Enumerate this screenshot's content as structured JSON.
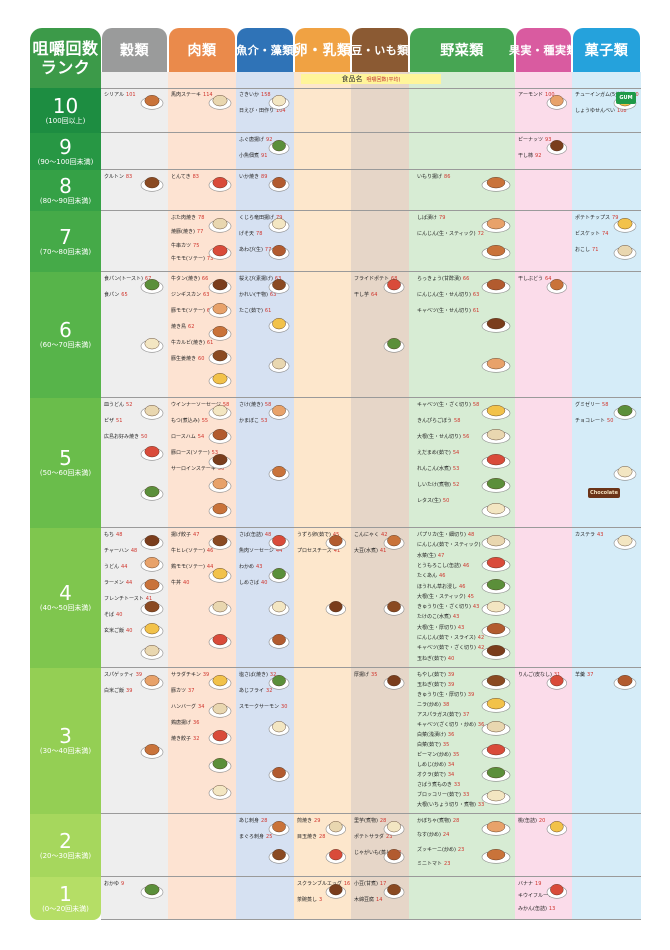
{
  "chart_data": {
    "type": "table",
    "title": "",
    "subheader": {
      "label": "食品名",
      "note": "咀嚼回数(平均)"
    },
    "colors": {
      "corner": "#3c9a49",
      "grain": "#9a9b9b",
      "meat": "#ea8a4b",
      "fish": "#2f73b7",
      "egg": "#f0a243",
      "bean": "#8b5a33",
      "veg": "#47a553",
      "fruit": "#d95ba0",
      "sweet": "#25a2dc",
      "grain_bg": "#eeeeee",
      "meat_bg": "#fde3d2",
      "fish_bg": "#d6e1f2",
      "egg_bg": "#fde7cc",
      "bean_bg": "#e6d6c8",
      "veg_bg": "#d7ecd4",
      "fruit_bg": "#fbdcea",
      "sweet_bg": "#d5ecf8"
    },
    "corner_label": [
      "咀嚼回数",
      "ランク"
    ],
    "categories": [
      {
        "key": "grain",
        "label": "穀類"
      },
      {
        "key": "meat",
        "label": "肉類"
      },
      {
        "key": "fish",
        "label": "魚介・藻類"
      },
      {
        "key": "egg",
        "label": "卵・乳類"
      },
      {
        "key": "bean",
        "label": "豆・いも類"
      },
      {
        "key": "veg",
        "label": "野菜類"
      },
      {
        "key": "fruit",
        "label": "果実・種実類"
      },
      {
        "key": "sweet",
        "label": "菓子類"
      }
    ],
    "ranks": [
      {
        "rank": "10",
        "range": "(100回以上)",
        "color": "#1d8d41"
      },
      {
        "rank": "9",
        "range": "(90〜100回未満)",
        "color": "#279744"
      },
      {
        "rank": "8",
        "range": "(80〜90回未満)",
        "color": "#35a146"
      },
      {
        "rank": "7",
        "range": "(70〜80回未満)",
        "color": "#45aa48"
      },
      {
        "rank": "6",
        "range": "(60〜70回未満)",
        "color": "#57b44a"
      },
      {
        "rank": "5",
        "range": "(50〜60回未満)",
        "color": "#6abd4b"
      },
      {
        "rank": "4",
        "range": "(40〜50回未満)",
        "color": "#7fc64e"
      },
      {
        "rank": "3",
        "range": "(30〜40回未満)",
        "color": "#94cf54"
      },
      {
        "rank": "2",
        "range": "(20〜30回未満)",
        "color": "#a6d75d"
      },
      {
        "rank": "1",
        "range": "(0〜20回未満)",
        "color": "#b5de66"
      }
    ],
    "foods": [
      {
        "cat": "grain",
        "rank": "10",
        "name": "シリアル",
        "count": 101
      },
      {
        "cat": "meat",
        "rank": "10",
        "name": "馬肉ステーキ",
        "count": 114
      },
      {
        "cat": "fish",
        "rank": "10",
        "name": "さきいか",
        "count": 158
      },
      {
        "cat": "fish",
        "rank": "10",
        "name": "日えび・田作り",
        "count": 104
      },
      {
        "cat": "fruit",
        "rank": "10",
        "name": "アーモンド",
        "count": 100
      },
      {
        "cat": "sweet",
        "rank": "10",
        "name": "チューインガム(5分間)",
        "count": 430
      },
      {
        "cat": "sweet",
        "rank": "10",
        "name": "しょうゆせんべい",
        "count": 108
      },
      {
        "cat": "fish",
        "rank": "9",
        "name": "ふぐ唐揚げ",
        "count": 92
      },
      {
        "cat": "fish",
        "rank": "9",
        "name": "小魚佃煮",
        "count": 91
      },
      {
        "cat": "fruit",
        "rank": "9",
        "name": "ピーナッツ",
        "count": 93
      },
      {
        "cat": "fruit",
        "rank": "9",
        "name": "干し柿",
        "count": 92
      },
      {
        "cat": "grain",
        "rank": "8",
        "name": "クルトン",
        "count": 83
      },
      {
        "cat": "meat",
        "rank": "8",
        "name": "とんてき",
        "count": 83
      },
      {
        "cat": "fish",
        "rank": "8",
        "name": "いか焼き",
        "count": 89
      },
      {
        "cat": "veg",
        "rank": "8",
        "name": "いもり揚げ",
        "count": 86
      },
      {
        "cat": "meat",
        "rank": "7",
        "name": "ぶた肉焼き",
        "count": 78
      },
      {
        "cat": "meat",
        "rank": "7",
        "name": "焼豚(焼き)",
        "count": 77
      },
      {
        "cat": "meat",
        "rank": "7",
        "name": "牛串カツ",
        "count": 75
      },
      {
        "cat": "meat",
        "rank": "7",
        "name": "牛モモ(ソテー)",
        "count": 73
      },
      {
        "cat": "fish",
        "rank": "7",
        "name": "くじら竜田揚げ",
        "count": 79
      },
      {
        "cat": "fish",
        "rank": "7",
        "name": "げそ天",
        "count": 78
      },
      {
        "cat": "fish",
        "rank": "7",
        "name": "あわび(生)",
        "count": 77
      },
      {
        "cat": "veg",
        "rank": "7",
        "name": "しば漬け",
        "count": 79
      },
      {
        "cat": "veg",
        "rank": "7",
        "name": "にんじん(生・スティック)",
        "count": 72
      },
      {
        "cat": "sweet",
        "rank": "7",
        "name": "ポテトチップス",
        "count": 79
      },
      {
        "cat": "sweet",
        "rank": "7",
        "name": "ビスケット",
        "count": 74
      },
      {
        "cat": "sweet",
        "rank": "7",
        "name": "おこし",
        "count": 71
      },
      {
        "cat": "grain",
        "rank": "6",
        "name": "食パン(トースト)",
        "count": 67
      },
      {
        "cat": "grain",
        "rank": "6",
        "name": "食パン",
        "count": 65
      },
      {
        "cat": "meat",
        "rank": "6",
        "name": "牛タン(焼き)",
        "count": 66
      },
      {
        "cat": "meat",
        "rank": "6",
        "name": "ジンギスカン",
        "count": 63
      },
      {
        "cat": "meat",
        "rank": "6",
        "name": "豚モモ(ソテー)",
        "count": 62
      },
      {
        "cat": "meat",
        "rank": "6",
        "name": "焼き鳥",
        "count": 62
      },
      {
        "cat": "meat",
        "rank": "6",
        "name": "牛カルビ(焼き)",
        "count": 61
      },
      {
        "cat": "meat",
        "rank": "6",
        "name": "豚生姜焼き",
        "count": 60
      },
      {
        "cat": "fish",
        "rank": "6",
        "name": "桜えび(素揚げ)",
        "count": 63
      },
      {
        "cat": "fish",
        "rank": "6",
        "name": "かれい(干物)",
        "count": 63
      },
      {
        "cat": "fish",
        "rank": "6",
        "name": "たこ(茹で)",
        "count": 61
      },
      {
        "cat": "bean",
        "rank": "6",
        "name": "フライドポテト",
        "count": 68
      },
      {
        "cat": "bean",
        "rank": "6",
        "name": "干し芋",
        "count": 64
      },
      {
        "cat": "veg",
        "rank": "6",
        "name": "らっきょう(甘酢漬)",
        "count": 66
      },
      {
        "cat": "veg",
        "rank": "6",
        "name": "にんじん(生・せん切り)",
        "count": 63
      },
      {
        "cat": "veg",
        "rank": "6",
        "name": "キャベツ(生・せん切り)",
        "count": 61
      },
      {
        "cat": "fruit",
        "rank": "6",
        "name": "干しぶどう",
        "count": 64
      },
      {
        "cat": "grain",
        "rank": "5",
        "name": "皿うどん",
        "count": 52
      },
      {
        "cat": "grain",
        "rank": "5",
        "name": "ピザ",
        "count": 51
      },
      {
        "cat": "grain",
        "rank": "5",
        "name": "広島お好み焼き",
        "count": 50
      },
      {
        "cat": "meat",
        "rank": "5",
        "name": "ウインナーソーセージ",
        "count": 58
      },
      {
        "cat": "meat",
        "rank": "5",
        "name": "もつ(煮込み)",
        "count": 55
      },
      {
        "cat": "meat",
        "rank": "5",
        "name": "ロースハム",
        "count": 54
      },
      {
        "cat": "meat",
        "rank": "5",
        "name": "豚ロース(ソテー)",
        "count": 53
      },
      {
        "cat": "meat",
        "rank": "5",
        "name": "サーロインステーキ",
        "count": 50
      },
      {
        "cat": "fish",
        "rank": "5",
        "name": "さけ(焼き)",
        "count": 58
      },
      {
        "cat": "fish",
        "rank": "5",
        "name": "かまぼこ",
        "count": 53
      },
      {
        "cat": "veg",
        "rank": "5",
        "name": "キャベツ(生・ざく切り)",
        "count": 58
      },
      {
        "cat": "veg",
        "rank": "5",
        "name": "きんぴらごぼう",
        "count": 58
      },
      {
        "cat": "veg",
        "rank": "5",
        "name": "大根(生・せん切り)",
        "count": 56
      },
      {
        "cat": "veg",
        "rank": "5",
        "name": "えだまめ(茹で)",
        "count": 54
      },
      {
        "cat": "veg",
        "rank": "5",
        "name": "れんこん(水煮)",
        "count": 53
      },
      {
        "cat": "veg",
        "rank": "5",
        "name": "しいたけ(煮物)",
        "count": 52
      },
      {
        "cat": "veg",
        "rank": "5",
        "name": "レタス(生)",
        "count": 50
      },
      {
        "cat": "sweet",
        "rank": "5",
        "name": "グミゼリー",
        "count": 58
      },
      {
        "cat": "sweet",
        "rank": "5",
        "name": "チョコレート",
        "count": 50
      },
      {
        "cat": "grain",
        "rank": "4",
        "name": "もち",
        "count": 48
      },
      {
        "cat": "grain",
        "rank": "4",
        "name": "チャーハン",
        "count": 48
      },
      {
        "cat": "grain",
        "rank": "4",
        "name": "うどん",
        "count": 44
      },
      {
        "cat": "grain",
        "rank": "4",
        "name": "ラーメン",
        "count": 44
      },
      {
        "cat": "grain",
        "rank": "4",
        "name": "フレンチトースト",
        "count": 41
      },
      {
        "cat": "grain",
        "rank": "4",
        "name": "そば",
        "count": 40
      },
      {
        "cat": "grain",
        "rank": "4",
        "name": "玄米ご飯",
        "count": 40
      },
      {
        "cat": "meat",
        "rank": "4",
        "name": "揚げ餃子",
        "count": 47
      },
      {
        "cat": "meat",
        "rank": "4",
        "name": "牛ヒレ(ソテー)",
        "count": 46
      },
      {
        "cat": "meat",
        "rank": "4",
        "name": "鶏モモ(ソテー)",
        "count": 44
      },
      {
        "cat": "meat",
        "rank": "4",
        "name": "牛丼",
        "count": 40
      },
      {
        "cat": "fish",
        "rank": "4",
        "name": "さば(缶詰)",
        "count": 48
      },
      {
        "cat": "fish",
        "rank": "4",
        "name": "魚肉ソーセージ",
        "count": 44
      },
      {
        "cat": "fish",
        "rank": "4",
        "name": "わかめ",
        "count": 43
      },
      {
        "cat": "fish",
        "rank": "4",
        "name": "しめさば",
        "count": 40
      },
      {
        "cat": "egg",
        "rank": "4",
        "name": "うずら卵(茹で)",
        "count": 45
      },
      {
        "cat": "egg",
        "rank": "4",
        "name": "プロセスチーズ",
        "count": 41
      },
      {
        "cat": "bean",
        "rank": "4",
        "name": "こんにゃく",
        "count": 42
      },
      {
        "cat": "bean",
        "rank": "4",
        "name": "大豆(水煮)",
        "count": 41
      },
      {
        "cat": "veg",
        "rank": "4",
        "name": "パプリカ(生・細切り)",
        "count": 48
      },
      {
        "cat": "veg",
        "rank": "4",
        "name": "にんじん(茹で・スティック)",
        "count": 48
      },
      {
        "cat": "veg",
        "rank": "4",
        "name": "水菜(生)",
        "count": 47
      },
      {
        "cat": "veg",
        "rank": "4",
        "name": "とうもろこし(缶詰)",
        "count": 46
      },
      {
        "cat": "veg",
        "rank": "4",
        "name": "たくあん",
        "count": 46
      },
      {
        "cat": "veg",
        "rank": "4",
        "name": "ほうれん草お浸し",
        "count": 46
      },
      {
        "cat": "veg",
        "rank": "4",
        "name": "大根(生・スティック)",
        "count": 45
      },
      {
        "cat": "veg",
        "rank": "4",
        "name": "きゅうり(生・ざく切り)",
        "count": 43
      },
      {
        "cat": "veg",
        "rank": "4",
        "name": "たけのこ(水煮)",
        "count": 43
      },
      {
        "cat": "veg",
        "rank": "4",
        "name": "大根(生・厚切り)",
        "count": 43
      },
      {
        "cat": "veg",
        "rank": "4",
        "name": "にんじん(茹で・スライス)",
        "count": 42
      },
      {
        "cat": "veg",
        "rank": "4",
        "name": "キャベツ(茹で・ざく切り)",
        "count": 42
      },
      {
        "cat": "veg",
        "rank": "4",
        "name": "玉ねぎ(茹で)",
        "count": 40
      },
      {
        "cat": "sweet",
        "rank": "4",
        "name": "カステラ",
        "count": 43
      },
      {
        "cat": "grain",
        "rank": "3",
        "name": "スパゲッティ",
        "count": 39
      },
      {
        "cat": "grain",
        "rank": "3",
        "name": "白米ご飯",
        "count": 39
      },
      {
        "cat": "meat",
        "rank": "3",
        "name": "サラダチキン",
        "count": 39
      },
      {
        "cat": "meat",
        "rank": "3",
        "name": "豚カツ",
        "count": 37
      },
      {
        "cat": "meat",
        "rank": "3",
        "name": "ハンバーグ",
        "count": 34
      },
      {
        "cat": "meat",
        "rank": "3",
        "name": "鶏唐揚げ",
        "count": 36
      },
      {
        "cat": "meat",
        "rank": "3",
        "name": "焼き餃子",
        "count": 32
      },
      {
        "cat": "fish",
        "rank": "3",
        "name": "塩さば(焼き)",
        "count": 32
      },
      {
        "cat": "fish",
        "rank": "3",
        "name": "あじフライ",
        "count": 32
      },
      {
        "cat": "fish",
        "rank": "3",
        "name": "スモークサーモン",
        "count": 30
      },
      {
        "cat": "bean",
        "rank": "3",
        "name": "厚揚げ",
        "count": 35
      },
      {
        "cat": "veg",
        "rank": "3",
        "name": "もやし(茹で)",
        "count": 39
      },
      {
        "cat": "veg",
        "rank": "3",
        "name": "玉ねぎ(茹で)",
        "count": 39
      },
      {
        "cat": "veg",
        "rank": "3",
        "name": "きゅうり(生・厚切り)",
        "count": 39
      },
      {
        "cat": "veg",
        "rank": "3",
        "name": "ニラ(炒め)",
        "count": 38
      },
      {
        "cat": "veg",
        "rank": "3",
        "name": "アスパラガス(茹で)",
        "count": 37
      },
      {
        "cat": "veg",
        "rank": "3",
        "name": "キャベツ(ざく切り・炒め)",
        "count": 36
      },
      {
        "cat": "veg",
        "rank": "3",
        "name": "白菜(浅漬け)",
        "count": 36
      },
      {
        "cat": "veg",
        "rank": "3",
        "name": "白菜(茹で)",
        "count": 35
      },
      {
        "cat": "veg",
        "rank": "3",
        "name": "ピーマン(炒め)",
        "count": 35
      },
      {
        "cat": "veg",
        "rank": "3",
        "name": "しめじ(炒め)",
        "count": 34
      },
      {
        "cat": "veg",
        "rank": "3",
        "name": "オクラ(茹で)",
        "count": 34
      },
      {
        "cat": "veg",
        "rank": "3",
        "name": "さばう煮ものき",
        "count": 33
      },
      {
        "cat": "veg",
        "rank": "3",
        "name": "ブロッコリー(茹で)",
        "count": 33
      },
      {
        "cat": "veg",
        "rank": "3",
        "name": "大根(いちょう切り・煮物)",
        "count": 33
      },
      {
        "cat": "fruit",
        "rank": "3",
        "name": "りんご(皮なし)",
        "count": 31
      },
      {
        "cat": "sweet",
        "rank": "3",
        "name": "羊羹",
        "count": 37
      },
      {
        "cat": "fish",
        "rank": "2",
        "name": "あじ刺身",
        "count": 28
      },
      {
        "cat": "fish",
        "rank": "2",
        "name": "まぐろ刺身",
        "count": 25
      },
      {
        "cat": "egg",
        "rank": "2",
        "name": "煎焼き",
        "count": 29
      },
      {
        "cat": "egg",
        "rank": "2",
        "name": "目玉焼き",
        "count": 28
      },
      {
        "cat": "bean",
        "rank": "2",
        "name": "里芋(煮物)",
        "count": 28
      },
      {
        "cat": "bean",
        "rank": "2",
        "name": "ポテトサラダ",
        "count": 23
      },
      {
        "cat": "bean",
        "rank": "2",
        "name": "じゃがいも(蒸し)",
        "count": 23
      },
      {
        "cat": "veg",
        "rank": "2",
        "name": "かぼちゃ(煮物)",
        "count": 28
      },
      {
        "cat": "veg",
        "rank": "2",
        "name": "なす(炒め)",
        "count": 24
      },
      {
        "cat": "veg",
        "rank": "2",
        "name": "ズッキーニ(炒め)",
        "count": 23
      },
      {
        "cat": "veg",
        "rank": "2",
        "name": "ミニトマト",
        "count": 23
      },
      {
        "cat": "fruit",
        "rank": "2",
        "name": "桃(缶詰)",
        "count": 20
      },
      {
        "cat": "grain",
        "rank": "1",
        "name": "おかゆ",
        "count": 9
      },
      {
        "cat": "egg",
        "rank": "1",
        "name": "スクランブルエッグ",
        "count": 16
      },
      {
        "cat": "egg",
        "rank": "1",
        "name": "茶碗蒸し",
        "count": 3
      },
      {
        "cat": "bean",
        "rank": "1",
        "name": "小豆(甘煮)",
        "count": 17
      },
      {
        "cat": "bean",
        "rank": "1",
        "name": "木綿豆腐",
        "count": 14
      },
      {
        "cat": "fruit",
        "rank": "1",
        "name": "バナナ",
        "count": 19
      },
      {
        "cat": "fruit",
        "rank": "1",
        "name": "キウイフルーツ",
        "count": 14
      },
      {
        "cat": "fruit",
        "rank": "1",
        "name": "みかん(缶詰)",
        "count": 13
      }
    ],
    "labels_on_pictures": {
      "gum": "GUM",
      "chocolate": "Chocolate"
    }
  }
}
